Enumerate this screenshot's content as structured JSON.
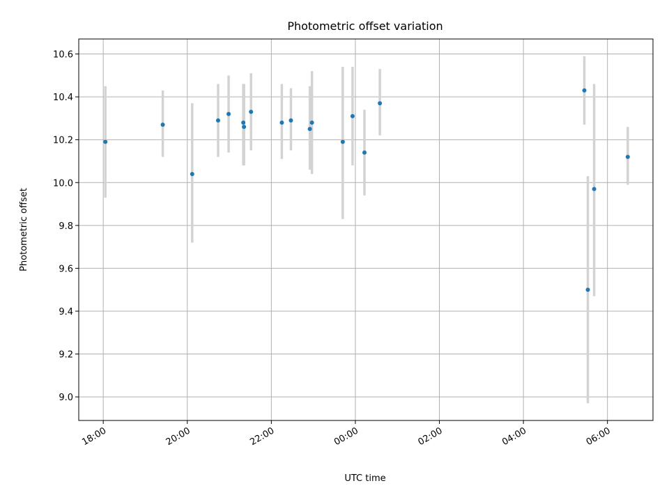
{
  "chart_data": {
    "type": "scatter",
    "title": "Photometric offset variation",
    "xlabel": "UTC time",
    "ylabel": "Photometric offset",
    "x_axis_type": "time",
    "xlim": [
      "17:25",
      "07:05"
    ],
    "ylim": [
      8.89,
      10.67
    ],
    "x_ticks": [
      "18:00",
      "20:00",
      "22:00",
      "00:00",
      "02:00",
      "04:00",
      "06:00"
    ],
    "y_ticks": [
      "9.0",
      "9.2",
      "9.4",
      "9.6",
      "9.8",
      "10.0",
      "10.2",
      "10.4",
      "10.6"
    ],
    "grid": true,
    "marker_color": "#1f77b4",
    "errorbar_color": "#d3d3d3",
    "points": [
      {
        "x": "18:03",
        "y": 10.19,
        "low": 9.93,
        "high": 10.45
      },
      {
        "x": "19:25",
        "y": 10.27,
        "low": 10.12,
        "high": 10.43
      },
      {
        "x": "20:07",
        "y": 10.04,
        "low": 9.72,
        "high": 10.37
      },
      {
        "x": "20:44",
        "y": 10.29,
        "low": 10.12,
        "high": 10.46
      },
      {
        "x": "20:59",
        "y": 10.32,
        "low": 10.14,
        "high": 10.5
      },
      {
        "x": "21:20",
        "y": 10.28,
        "low": 10.08,
        "high": 10.46
      },
      {
        "x": "21:21",
        "y": 10.26,
        "low": 10.08,
        "high": 10.46
      },
      {
        "x": "21:31",
        "y": 10.33,
        "low": 10.15,
        "high": 10.51
      },
      {
        "x": "22:15",
        "y": 10.28,
        "low": 10.11,
        "high": 10.46
      },
      {
        "x": "22:28",
        "y": 10.29,
        "low": 10.15,
        "high": 10.44
      },
      {
        "x": "22:55",
        "y": 10.25,
        "low": 10.06,
        "high": 10.45
      },
      {
        "x": "22:58",
        "y": 10.28,
        "low": 10.04,
        "high": 10.52
      },
      {
        "x": "23:42",
        "y": 10.19,
        "low": 9.83,
        "high": 10.54
      },
      {
        "x": "23:56",
        "y": 10.31,
        "low": 10.08,
        "high": 10.54
      },
      {
        "x": "00:13",
        "y": 10.14,
        "low": 9.94,
        "high": 10.34
      },
      {
        "x": "00:35",
        "y": 10.37,
        "low": 10.22,
        "high": 10.53
      },
      {
        "x": "05:27",
        "y": 10.43,
        "low": 10.27,
        "high": 10.59
      },
      {
        "x": "05:32",
        "y": 9.5,
        "low": 8.97,
        "high": 10.03
      },
      {
        "x": "05:41",
        "y": 9.97,
        "low": 9.47,
        "high": 10.46
      },
      {
        "x": "06:29",
        "y": 10.12,
        "low": 9.99,
        "high": 10.26
      }
    ]
  }
}
